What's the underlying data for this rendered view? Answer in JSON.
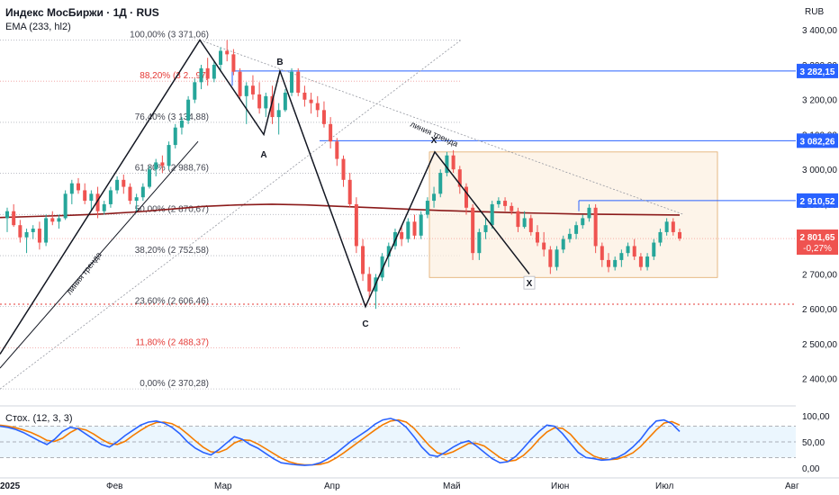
{
  "header": {
    "title": "Индекс МосБиржи · 1Д · RUS",
    "ema_label": "EMA (233, hl2)",
    "currency": "RUB"
  },
  "stoch": {
    "label": "Стох. (12, 3, 3)",
    "ticks": [
      "100,00",
      "50,00",
      "0,00"
    ]
  },
  "colors": {
    "up": "#26a69a",
    "down": "#ef5350",
    "ema": "#8b1a1a",
    "blue": "#2962ff",
    "fib_red": "#e53935",
    "stoch_k": "#2962ff",
    "stoch_d": "#f57c00"
  },
  "chart_data": {
    "type": "candlestick",
    "ylim": [
      2350,
      3460
    ],
    "y_ticks": [
      "3 400,00",
      "3 300,00",
      "3 200,00",
      "3 100,00",
      "3 000,00",
      "2 900,00",
      "2 700,00",
      "2 600,00",
      "2 500,00",
      "2 400,00"
    ],
    "x_ticks": [
      "2025",
      "Фев",
      "Мар",
      "Апр",
      "Май",
      "Июн",
      "Июл",
      "Авг"
    ],
    "fib_levels": [
      {
        "label": "100,00% (3 371,06)",
        "value": 3371.06
      },
      {
        "label": "88,20% (3 2..,97)",
        "value": 3252.97
      },
      {
        "label": "76,40% (3 134,88)",
        "value": 3134.88
      },
      {
        "label": "61,80% (2 988,76)",
        "value": 2988.76
      },
      {
        "label": "50,00% (2 870,67)",
        "value": 2870.67
      },
      {
        "label": "38,20% (2 752,58)",
        "value": 2752.58
      },
      {
        "label": "23,60% (2 606,46)",
        "value": 2606.46
      },
      {
        "label": "11,80% (2 488,37)",
        "value": 2488.37
      },
      {
        "label": "0,00% (2 370,28)",
        "value": 2370.28
      }
    ],
    "price_badges": [
      {
        "label": "3 282,15",
        "value": 3282.15
      },
      {
        "label": "3 082,26",
        "value": 3082.26
      },
      {
        "label": "2 910,52",
        "value": 2910.52
      }
    ],
    "last_price": {
      "label": "2 801,65",
      "change": "-0,27%",
      "value": 2801.65
    },
    "wave_labels": [
      "B",
      "A",
      "C",
      "X",
      "X"
    ],
    "trendline_labels": [
      "линия тренда",
      "линия тренда"
    ],
    "candles": [
      {
        "o": 2860,
        "h": 2890,
        "l": 2820,
        "c": 2880
      },
      {
        "o": 2880,
        "h": 2900,
        "l": 2835,
        "c": 2840
      },
      {
        "o": 2840,
        "h": 2855,
        "l": 2790,
        "c": 2805
      },
      {
        "o": 2805,
        "h": 2830,
        "l": 2760,
        "c": 2820
      },
      {
        "o": 2820,
        "h": 2840,
        "l": 2800,
        "c": 2830
      },
      {
        "o": 2830,
        "h": 2850,
        "l": 2770,
        "c": 2790
      },
      {
        "o": 2790,
        "h": 2870,
        "l": 2780,
        "c": 2860
      },
      {
        "o": 2860,
        "h": 2880,
        "l": 2840,
        "c": 2850
      },
      {
        "o": 2850,
        "h": 2870,
        "l": 2830,
        "c": 2860
      },
      {
        "o": 2860,
        "h": 2940,
        "l": 2855,
        "c": 2930
      },
      {
        "o": 2930,
        "h": 2970,
        "l": 2900,
        "c": 2960
      },
      {
        "o": 2960,
        "h": 2975,
        "l": 2930,
        "c": 2940
      },
      {
        "o": 2940,
        "h": 2960,
        "l": 2900,
        "c": 2910
      },
      {
        "o": 2910,
        "h": 2940,
        "l": 2880,
        "c": 2930
      },
      {
        "o": 2930,
        "h": 2950,
        "l": 2860,
        "c": 2880
      },
      {
        "o": 2880,
        "h": 2910,
        "l": 2870,
        "c": 2900
      },
      {
        "o": 2900,
        "h": 2950,
        "l": 2890,
        "c": 2940
      },
      {
        "o": 2940,
        "h": 2980,
        "l": 2930,
        "c": 2970
      },
      {
        "o": 2970,
        "h": 2985,
        "l": 2930,
        "c": 2950
      },
      {
        "o": 2950,
        "h": 2960,
        "l": 2900,
        "c": 2910
      },
      {
        "o": 2910,
        "h": 2930,
        "l": 2880,
        "c": 2920
      },
      {
        "o": 2920,
        "h": 2960,
        "l": 2910,
        "c": 2950
      },
      {
        "o": 2950,
        "h": 3010,
        "l": 2945,
        "c": 3000
      },
      {
        "o": 3000,
        "h": 3030,
        "l": 2980,
        "c": 3020
      },
      {
        "o": 3020,
        "h": 3040,
        "l": 2990,
        "c": 3010
      },
      {
        "o": 3010,
        "h": 3080,
        "l": 3000,
        "c": 3070
      },
      {
        "o": 3070,
        "h": 3130,
        "l": 3060,
        "c": 3120
      },
      {
        "o": 3120,
        "h": 3150,
        "l": 3100,
        "c": 3140
      },
      {
        "o": 3140,
        "h": 3210,
        "l": 3130,
        "c": 3200
      },
      {
        "o": 3200,
        "h": 3260,
        "l": 3190,
        "c": 3250
      },
      {
        "o": 3250,
        "h": 3300,
        "l": 3230,
        "c": 3290
      },
      {
        "o": 3290,
        "h": 3320,
        "l": 3240,
        "c": 3260
      },
      {
        "o": 3260,
        "h": 3310,
        "l": 3250,
        "c": 3300
      },
      {
        "o": 3300,
        "h": 3350,
        "l": 3280,
        "c": 3340
      },
      {
        "o": 3340,
        "h": 3371,
        "l": 3310,
        "c": 3330
      },
      {
        "o": 3330,
        "h": 3345,
        "l": 3270,
        "c": 3280
      },
      {
        "o": 3280,
        "h": 3290,
        "l": 3200,
        "c": 3210
      },
      {
        "o": 3210,
        "h": 3250,
        "l": 3130,
        "c": 3240
      },
      {
        "o": 3240,
        "h": 3270,
        "l": 3200,
        "c": 3215
      },
      {
        "o": 3215,
        "h": 3250,
        "l": 3160,
        "c": 3175
      },
      {
        "o": 3175,
        "h": 3220,
        "l": 3150,
        "c": 3210
      },
      {
        "o": 3210,
        "h": 3240,
        "l": 3130,
        "c": 3150
      },
      {
        "o": 3150,
        "h": 3190,
        "l": 3100,
        "c": 3170
      },
      {
        "o": 3170,
        "h": 3230,
        "l": 3165,
        "c": 3220
      },
      {
        "o": 3220,
        "h": 3290,
        "l": 3210,
        "c": 3280
      },
      {
        "o": 3280,
        "h": 3290,
        "l": 3210,
        "c": 3220
      },
      {
        "o": 3220,
        "h": 3240,
        "l": 3180,
        "c": 3200
      },
      {
        "o": 3200,
        "h": 3220,
        "l": 3160,
        "c": 3190
      },
      {
        "o": 3190,
        "h": 3210,
        "l": 3150,
        "c": 3170
      },
      {
        "o": 3170,
        "h": 3195,
        "l": 3120,
        "c": 3130
      },
      {
        "o": 3130,
        "h": 3150,
        "l": 3060,
        "c": 3080
      },
      {
        "o": 3080,
        "h": 3090,
        "l": 3010,
        "c": 3030
      },
      {
        "o": 3030,
        "h": 3040,
        "l": 2950,
        "c": 2970
      },
      {
        "o": 2970,
        "h": 2990,
        "l": 2890,
        "c": 2900
      },
      {
        "o": 2900,
        "h": 2920,
        "l": 2760,
        "c": 2780
      },
      {
        "o": 2780,
        "h": 2800,
        "l": 2680,
        "c": 2700
      },
      {
        "o": 2700,
        "h": 2720,
        "l": 2630,
        "c": 2650
      },
      {
        "o": 2650,
        "h": 2700,
        "l": 2600,
        "c": 2690
      },
      {
        "o": 2690,
        "h": 2760,
        "l": 2680,
        "c": 2750
      },
      {
        "o": 2750,
        "h": 2790,
        "l": 2720,
        "c": 2780
      },
      {
        "o": 2780,
        "h": 2830,
        "l": 2770,
        "c": 2820
      },
      {
        "o": 2820,
        "h": 2840,
        "l": 2780,
        "c": 2800
      },
      {
        "o": 2800,
        "h": 2860,
        "l": 2790,
        "c": 2850
      },
      {
        "o": 2850,
        "h": 2870,
        "l": 2800,
        "c": 2810
      },
      {
        "o": 2810,
        "h": 2880,
        "l": 2800,
        "c": 2870
      },
      {
        "o": 2870,
        "h": 2920,
        "l": 2860,
        "c": 2910
      },
      {
        "o": 2910,
        "h": 2950,
        "l": 2890,
        "c": 2930
      },
      {
        "o": 2930,
        "h": 3000,
        "l": 2920,
        "c": 2990
      },
      {
        "o": 2990,
        "h": 3050,
        "l": 2980,
        "c": 3040
      },
      {
        "o": 3040,
        "h": 3055,
        "l": 2990,
        "c": 3000
      },
      {
        "o": 3000,
        "h": 3010,
        "l": 2930,
        "c": 2950
      },
      {
        "o": 2950,
        "h": 2960,
        "l": 2870,
        "c": 2890
      },
      {
        "o": 2890,
        "h": 2900,
        "l": 2740,
        "c": 2760
      },
      {
        "o": 2760,
        "h": 2830,
        "l": 2740,
        "c": 2820
      },
      {
        "o": 2820,
        "h": 2860,
        "l": 2800,
        "c": 2840
      },
      {
        "o": 2840,
        "h": 2910,
        "l": 2830,
        "c": 2900
      },
      {
        "o": 2900,
        "h": 2920,
        "l": 2890,
        "c": 2910
      },
      {
        "o": 2910,
        "h": 2920,
        "l": 2880,
        "c": 2895
      },
      {
        "o": 2895,
        "h": 2905,
        "l": 2870,
        "c": 2880
      },
      {
        "o": 2880,
        "h": 2890,
        "l": 2820,
        "c": 2835
      },
      {
        "o": 2835,
        "h": 2880,
        "l": 2830,
        "c": 2860
      },
      {
        "o": 2860,
        "h": 2870,
        "l": 2810,
        "c": 2820
      },
      {
        "o": 2820,
        "h": 2840,
        "l": 2780,
        "c": 2790
      },
      {
        "o": 2790,
        "h": 2820,
        "l": 2750,
        "c": 2770
      },
      {
        "o": 2770,
        "h": 2780,
        "l": 2700,
        "c": 2720
      },
      {
        "o": 2720,
        "h": 2780,
        "l": 2710,
        "c": 2770
      },
      {
        "o": 2770,
        "h": 2810,
        "l": 2760,
        "c": 2800
      },
      {
        "o": 2800,
        "h": 2830,
        "l": 2790,
        "c": 2815
      },
      {
        "o": 2815,
        "h": 2850,
        "l": 2800,
        "c": 2840
      },
      {
        "o": 2840,
        "h": 2870,
        "l": 2830,
        "c": 2860
      },
      {
        "o": 2860,
        "h": 2900,
        "l": 2850,
        "c": 2890
      },
      {
        "o": 2890,
        "h": 2900,
        "l": 2760,
        "c": 2780
      },
      {
        "o": 2780,
        "h": 2790,
        "l": 2720,
        "c": 2740
      },
      {
        "o": 2740,
        "h": 2760,
        "l": 2705,
        "c": 2720
      },
      {
        "o": 2720,
        "h": 2750,
        "l": 2710,
        "c": 2740
      },
      {
        "o": 2740,
        "h": 2770,
        "l": 2720,
        "c": 2760
      },
      {
        "o": 2760,
        "h": 2790,
        "l": 2750,
        "c": 2780
      },
      {
        "o": 2780,
        "h": 2800,
        "l": 2740,
        "c": 2750
      },
      {
        "o": 2750,
        "h": 2760,
        "l": 2710,
        "c": 2720
      },
      {
        "o": 2720,
        "h": 2760,
        "l": 2710,
        "c": 2750
      },
      {
        "o": 2750,
        "h": 2800,
        "l": 2740,
        "c": 2790
      },
      {
        "o": 2790,
        "h": 2830,
        "l": 2780,
        "c": 2820
      },
      {
        "o": 2820,
        "h": 2860,
        "l": 2810,
        "c": 2850
      },
      {
        "o": 2850,
        "h": 2860,
        "l": 2810,
        "c": 2820
      },
      {
        "o": 2820,
        "h": 2830,
        "l": 2795,
        "c": 2801.65
      }
    ],
    "ema": [
      2862,
      2865,
      2868,
      2872,
      2878,
      2886,
      2894,
      2898,
      2900,
      2898,
      2894,
      2890,
      2886,
      2882,
      2879,
      2876,
      2874,
      2872,
      2871,
      2870,
      2869
    ],
    "stoch_k": [
      80,
      78,
      74,
      68,
      60,
      52,
      45,
      55,
      70,
      78,
      75,
      65,
      55,
      45,
      40,
      50,
      62,
      72,
      82,
      88,
      90,
      86,
      78,
      66,
      50,
      38,
      30,
      25,
      35,
      48,
      60,
      55,
      45,
      38,
      28,
      18,
      10,
      8,
      6,
      5,
      6,
      10,
      18,
      28,
      40,
      52,
      62,
      72,
      84,
      92,
      95,
      90,
      78,
      60,
      40,
      25,
      22,
      30,
      40,
      48,
      52,
      42,
      30,
      18,
      10,
      12,
      22,
      38,
      55,
      70,
      82,
      80,
      66,
      48,
      30,
      20,
      18,
      15,
      16,
      20,
      28,
      40,
      55,
      75,
      90,
      92,
      85,
      70
    ],
    "stoch_d": [
      82,
      80,
      77,
      73,
      68,
      61,
      53,
      51,
      57,
      68,
      76,
      73,
      65,
      55,
      47,
      45,
      51,
      62,
      72,
      81,
      87,
      88,
      85,
      77,
      65,
      52,
      40,
      31,
      30,
      36,
      48,
      54,
      53,
      46,
      37,
      28,
      19,
      12,
      8,
      6,
      6,
      7,
      11,
      19,
      29,
      40,
      51,
      62,
      73,
      83,
      90,
      92,
      88,
      76,
      59,
      42,
      29,
      26,
      31,
      39,
      47,
      47,
      42,
      31,
      20,
      13,
      15,
      24,
      38,
      55,
      69,
      77,
      76,
      65,
      48,
      33,
      23,
      18,
      16,
      17,
      22,
      29,
      41,
      57,
      73,
      86,
      89,
      82
    ]
  }
}
